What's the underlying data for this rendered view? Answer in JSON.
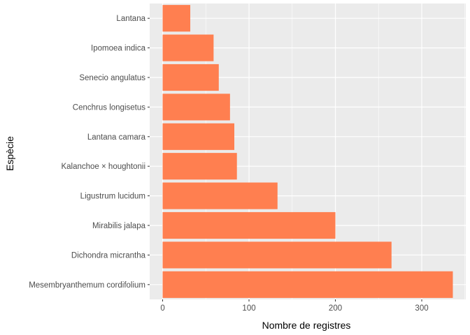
{
  "chart_data": {
    "type": "bar",
    "orientation": "horizontal",
    "title": "",
    "xlabel": "Nombre de registres",
    "ylabel": "Espècie",
    "categories": [
      "Mesembryanthemum cordifolium",
      "Dichondra micrantha",
      "Mirabilis jalapa",
      "Ligustrum lucidum",
      "Kalanchoe × houghtonii",
      "Lantana camara",
      "Cenchrus longisetus",
      "Senecio angulatus",
      "Ipomoea indica",
      "Lantana"
    ],
    "values": [
      336,
      265,
      200,
      133,
      86,
      83,
      78,
      65,
      59,
      32
    ],
    "xlim": [
      -15,
      351
    ],
    "xticks": [
      0,
      100,
      200,
      300
    ],
    "bar_color": "#ff7f50",
    "panel_color": "#ebebeb",
    "grid_color": "#ffffff",
    "grid": true,
    "legend": "none"
  }
}
